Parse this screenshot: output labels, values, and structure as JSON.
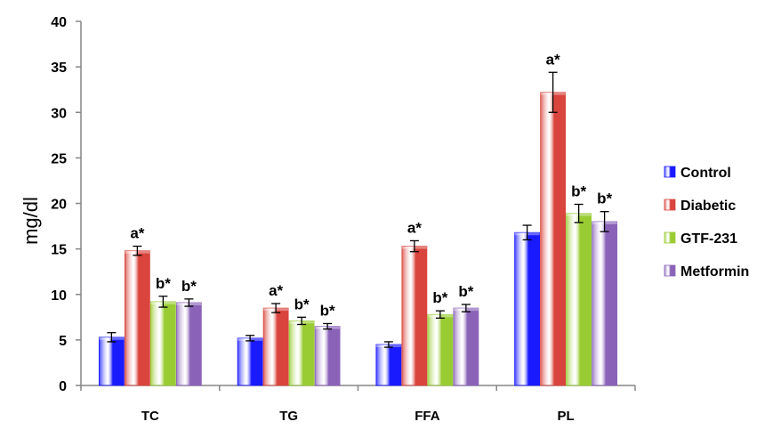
{
  "chart_data": {
    "type": "bar",
    "title": "",
    "xlabel": "",
    "ylabel": "mg/dl",
    "ylim": [
      0,
      40
    ],
    "yticks": [
      0,
      5,
      10,
      15,
      20,
      25,
      30,
      35,
      40
    ],
    "grid": false,
    "legend_position": "right",
    "categories": [
      "TC",
      "TG",
      "FFA",
      "PL"
    ],
    "series": [
      {
        "name": "Control",
        "color": "#1a1aff",
        "values": [
          5.3,
          5.2,
          4.5,
          16.8
        ],
        "errors": [
          0.5,
          0.3,
          0.3,
          0.8
        ],
        "annotations": [
          "",
          "",
          "",
          ""
        ]
      },
      {
        "name": "Diabetic",
        "color": "#d9443c",
        "values": [
          14.8,
          8.5,
          15.3,
          32.2
        ],
        "errors": [
          0.5,
          0.5,
          0.6,
          2.2
        ],
        "annotations": [
          "a*",
          "a*",
          "a*",
          "a*"
        ]
      },
      {
        "name": "GTF-231",
        "color": "#99cc33",
        "values": [
          9.2,
          7.1,
          7.8,
          18.9
        ],
        "errors": [
          0.6,
          0.4,
          0.4,
          1.0
        ],
        "annotations": [
          "b*",
          "b*",
          "b*",
          "b*"
        ]
      },
      {
        "name": "Metformin",
        "color": "#8a63b8",
        "values": [
          9.1,
          6.5,
          8.5,
          18.0
        ],
        "errors": [
          0.4,
          0.3,
          0.4,
          1.1
        ],
        "annotations": [
          "b*",
          "b*",
          "b*",
          "b*"
        ]
      }
    ]
  }
}
